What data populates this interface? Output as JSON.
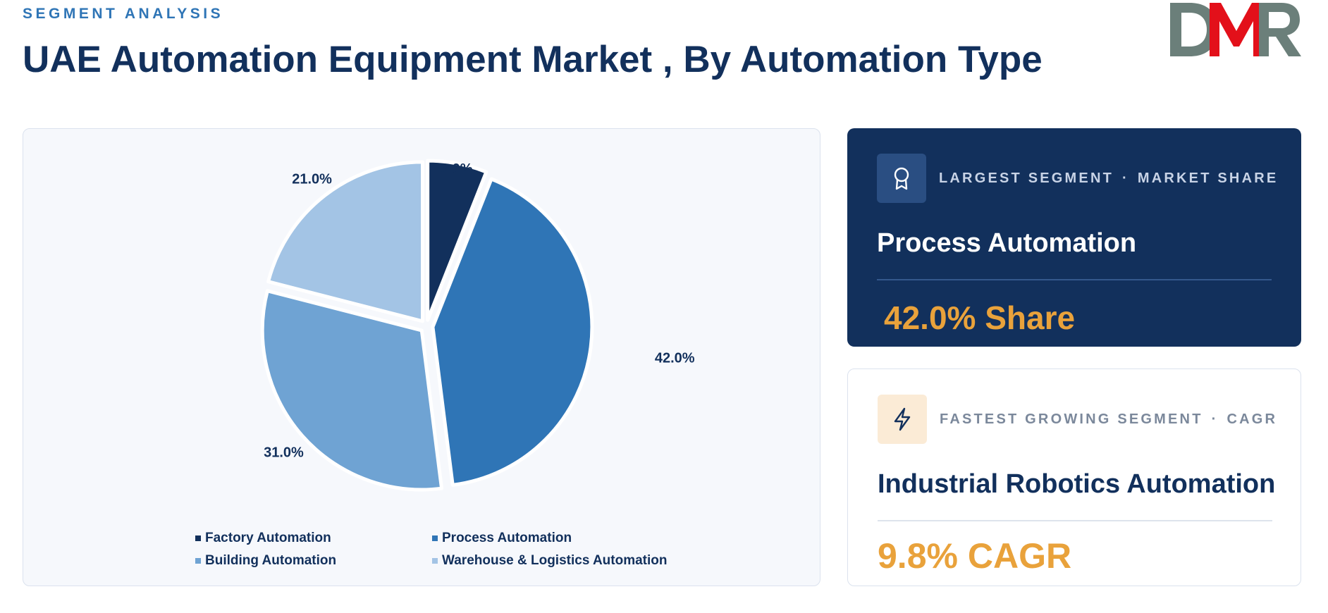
{
  "header": {
    "eyebrow": "SEGMENT ANALYSIS",
    "title": "UAE Automation Equipment Market , By Automation Type",
    "logo_text": "DMR"
  },
  "chart_data": {
    "type": "pie",
    "categories": [
      "Factory Automation",
      "Process Automation",
      "Building Automation",
      "Warehouse & Logistics Automation"
    ],
    "values": [
      6.0,
      42.0,
      31.0,
      21.0
    ],
    "labels": [
      "6.0%",
      "42.0%",
      "31.0%",
      "21.0%"
    ],
    "colors": [
      "#12305c",
      "#2f75b6",
      "#6fa3d3",
      "#a3c4e5"
    ],
    "start_angle_deg": 0,
    "direction": "clockwise",
    "exploded": true,
    "legend_position": "bottom"
  },
  "cards": {
    "largest": {
      "kicker_left": "LARGEST SEGMENT",
      "kicker_sep": "·",
      "kicker_right": "MARKET SHARE",
      "segment": "Process Automation",
      "metric": "42.0% Share",
      "icon": "award-icon"
    },
    "fastest": {
      "kicker_left": "FASTEST GROWING SEGMENT",
      "kicker_sep": "·",
      "kicker_right": "CAGR",
      "segment": "Industrial Robotics Automation",
      "metric": "9.8% CAGR",
      "icon": "lightning-icon"
    }
  },
  "colors": {
    "navy": "#12305c",
    "accent_blue": "#2f75b6",
    "orange": "#e9a23b",
    "logo_gray": "#6b7f7a",
    "logo_red": "#e3101a"
  }
}
